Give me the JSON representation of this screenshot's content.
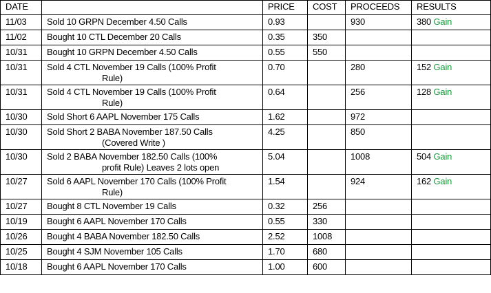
{
  "headers": {
    "date": "DATE",
    "description": "",
    "price": "PRICE",
    "cost": "COST",
    "proceeds": "PROCEEDS",
    "results": "RESULTS"
  },
  "rows": [
    {
      "date": "11/03",
      "line1": "Sold 10 GRPN December 4.50 Calls",
      "line2": "",
      "price": "0.93",
      "cost": "",
      "proceeds": "930",
      "result": "380",
      "result_label": "Gain"
    },
    {
      "date": "11/02",
      "line1": "Bought 10 CTL December 20 Calls",
      "line2": "",
      "price": "0.35",
      "cost": "350",
      "proceeds": "",
      "result": "",
      "result_label": ""
    },
    {
      "date": "10/31",
      "line1": "Bought 10 GRPN December 4.50 Calls",
      "line2": "",
      "price": "0.55",
      "cost": "550",
      "proceeds": "",
      "result": "",
      "result_label": ""
    },
    {
      "date": "10/31",
      "line1": "Sold 4 CTL November 19 Calls (100% Profit",
      "line2": "Rule)",
      "price": "0.70",
      "cost": "",
      "proceeds": "280",
      "result": "152",
      "result_label": "Gain"
    },
    {
      "date": "10/31",
      "line1": "Sold 4 CTL November 19 Calls (100% Profit",
      "line2": "Rule)",
      "price": "0.64",
      "cost": "",
      "proceeds": "256",
      "result": "128",
      "result_label": "Gain"
    },
    {
      "date": "10/30",
      "line1": "Sold Short 6 AAPL November 175 Calls",
      "line2": "",
      "price": "1.62",
      "cost": "",
      "proceeds": "972",
      "result": "",
      "result_label": ""
    },
    {
      "date": "10/30",
      "line1": "Sold Short 2 BABA  November 187.50 Calls",
      "line2": "(Covered Write )",
      "price": "4.25",
      "cost": "",
      "proceeds": "850",
      "result": "",
      "result_label": ""
    },
    {
      "date": "10/30",
      "line1": "Sold 2 BABA November 182.50 Calls (100%",
      "line2": "profit Rule) Leaves 2 lots open",
      "price": "5.04",
      "cost": "",
      "proceeds": "1008",
      "result": "504",
      "result_label": "Gain"
    },
    {
      "date": "10/27",
      "line1": "Sold 6 AAPL November 170 Calls (100% Profit",
      "line2": "Rule)",
      "price": "1.54",
      "cost": "",
      "proceeds": "924",
      "result": "162",
      "result_label": "Gain"
    },
    {
      "date": "10/27",
      "line1": "Bought 8 CTL November 19 Calls",
      "line2": "",
      "price": "0.32",
      "cost": "256",
      "proceeds": "",
      "result": "",
      "result_label": ""
    },
    {
      "date": "10/19",
      "line1": "Bought 6 AAPL November 170 Calls",
      "line2": "",
      "price": "0.55",
      "cost": "330",
      "proceeds": "",
      "result": "",
      "result_label": ""
    },
    {
      "date": "10/26",
      "line1": "Bought 4 BABA November 182.50 Calls",
      "line2": "",
      "price": "2.52",
      "cost": "1008",
      "proceeds": "",
      "result": "",
      "result_label": ""
    },
    {
      "date": "10/25",
      "line1": "Bought 4 SJM November 105 Calls",
      "line2": "",
      "price": "1.70",
      "cost": "680",
      "proceeds": "",
      "result": "",
      "result_label": ""
    },
    {
      "date": "10/18",
      "line1": "Bought 6 AAPL November 170 Calls",
      "line2": "",
      "price": "1.00",
      "cost": "600",
      "proceeds": "",
      "result": "",
      "result_label": ""
    }
  ],
  "colors": {
    "gain": "#1a9a3c",
    "border": "#000000",
    "text": "#000000"
  }
}
